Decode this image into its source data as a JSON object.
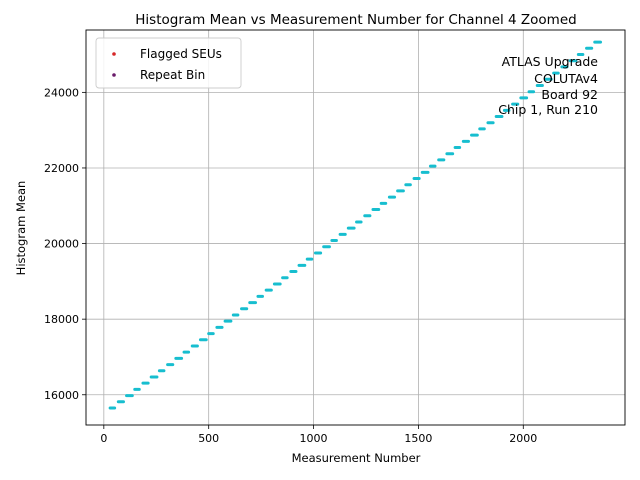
{
  "chart_data": {
    "type": "scatter",
    "title": "Histogram Mean vs Measurement Number for Channel 4 Zoomed",
    "xlabel": "Measurement Number",
    "ylabel": "Histogram Mean",
    "xlim": [
      -85,
      2485
    ],
    "ylim": [
      15200,
      25650
    ],
    "x_ticks": [
      0,
      500,
      1000,
      1500,
      2000
    ],
    "x_tick_labels": [
      "0",
      "500",
      "1000",
      "1500",
      "2000"
    ],
    "y_ticks": [
      16000,
      18000,
      20000,
      22000,
      24000
    ],
    "y_tick_labels": [
      "16000",
      "18000",
      "20000",
      "22000",
      "24000"
    ],
    "grid": true,
    "legend": {
      "placement": "top-left",
      "entries": [
        {
          "label": "Flagged SEUs",
          "color": "#d62728"
        },
        {
          "label": "Repeat Bin",
          "color": "#6a1b6a"
        }
      ]
    },
    "annotation": {
      "placement": "top-right",
      "lines": [
        "ATLAS Upgrade",
        "COLUTAv4",
        "Board 92",
        "Chip 1, Run 210"
      ]
    },
    "series": [
      {
        "name": "Histogram Mean",
        "color": "#17becf",
        "x_start": 30,
        "x_end": 2380,
        "y_start": 15650,
        "y_end": 25330,
        "step_count": 60
      }
    ]
  }
}
